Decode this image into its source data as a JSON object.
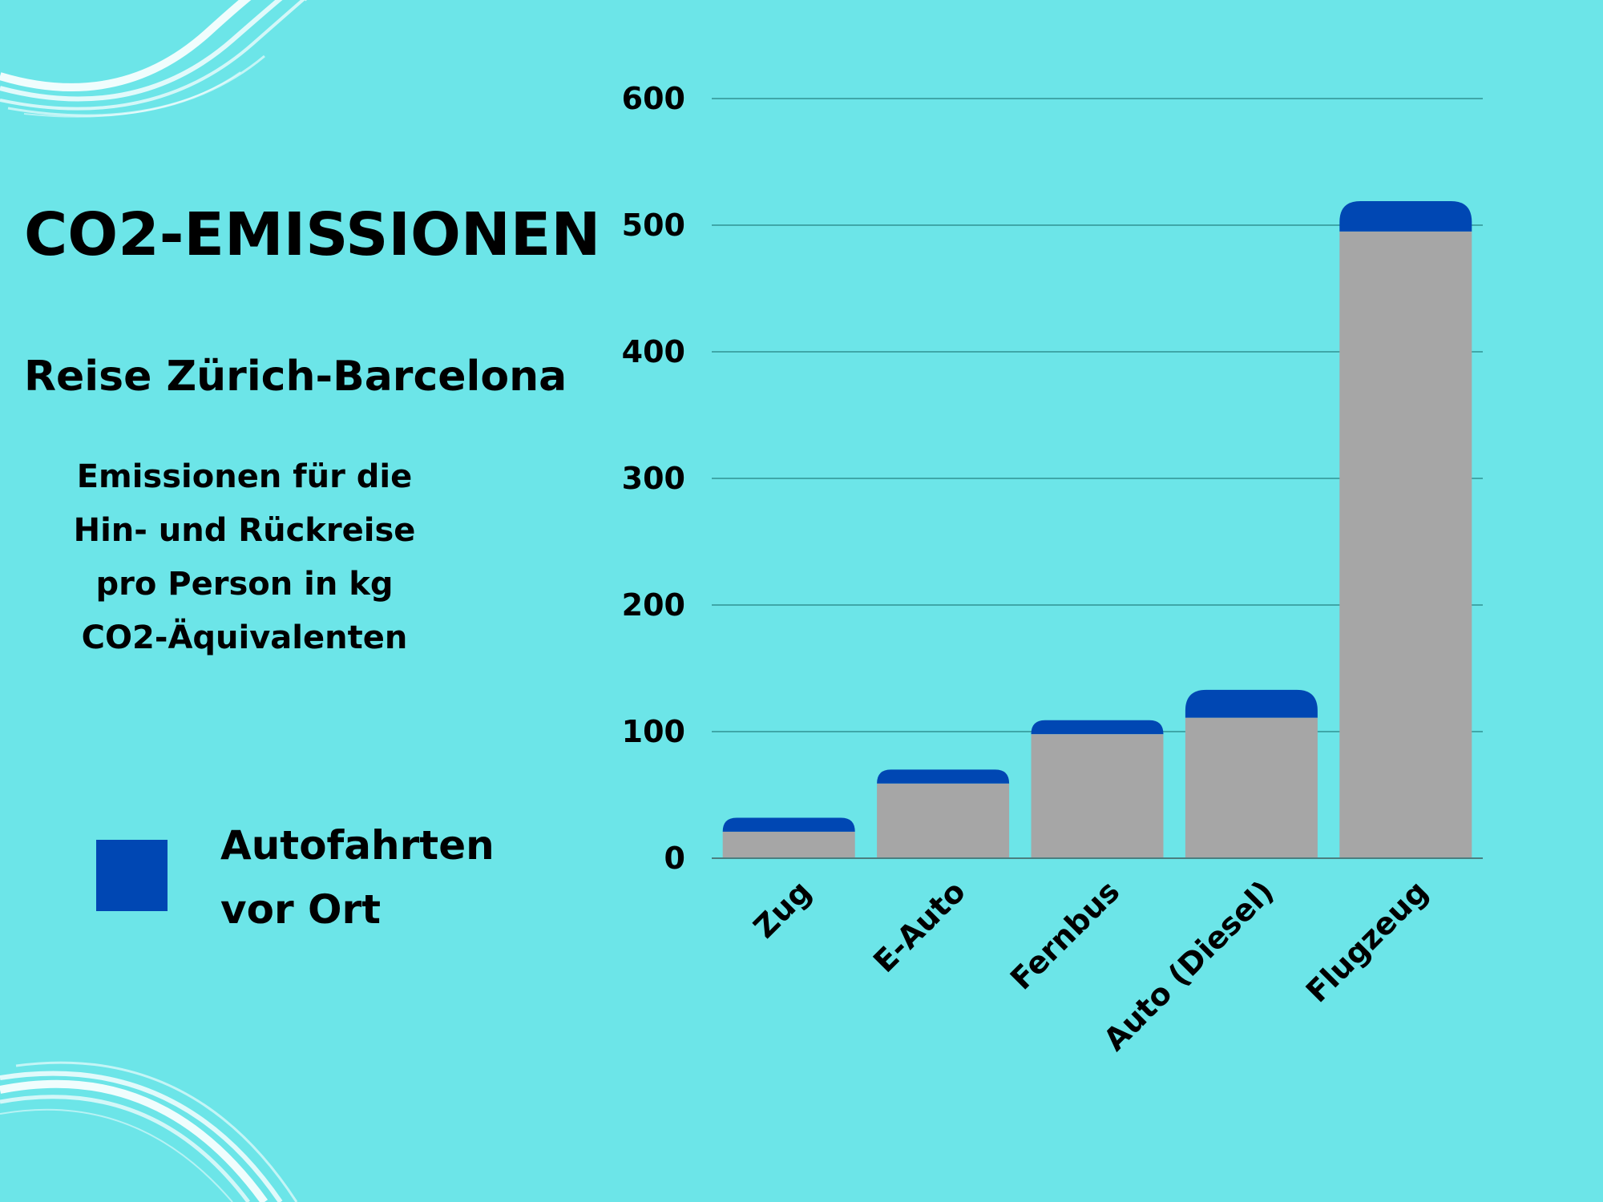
{
  "title": "CO2-EMISSIONEN",
  "subtitle": "Reise Zürich-Barcelona",
  "description": [
    "Emissionen für die",
    "Hin- und Rückreise",
    "pro Person in kg",
    "CO2-Äquivalenten"
  ],
  "legend": {
    "label_lines": [
      "Autofahrten",
      "vor Ort"
    ],
    "color": "#0047b3"
  },
  "colors": {
    "background": "#6ce5e8",
    "base": "#a6a6a6",
    "stack": "#0047b3",
    "grid": "#3fa7a8",
    "deco": "#ffffff"
  },
  "chart_data": {
    "type": "bar",
    "stacked": true,
    "categories": [
      "Zug",
      "E-Auto",
      "Fernbus",
      "Auto (Diesel)",
      "Flugzeug"
    ],
    "series": [
      {
        "values": [
          21,
          59,
          98,
          111,
          495
        ]
      },
      {
        "name": "Autofahrten vor Ort",
        "values": [
          11,
          11,
          11,
          22,
          24
        ]
      }
    ],
    "ylim": [
      0,
      600
    ],
    "yticks": [
      0,
      100,
      200,
      300,
      400,
      500,
      600
    ],
    "grid": true,
    "legend_position": "left"
  }
}
